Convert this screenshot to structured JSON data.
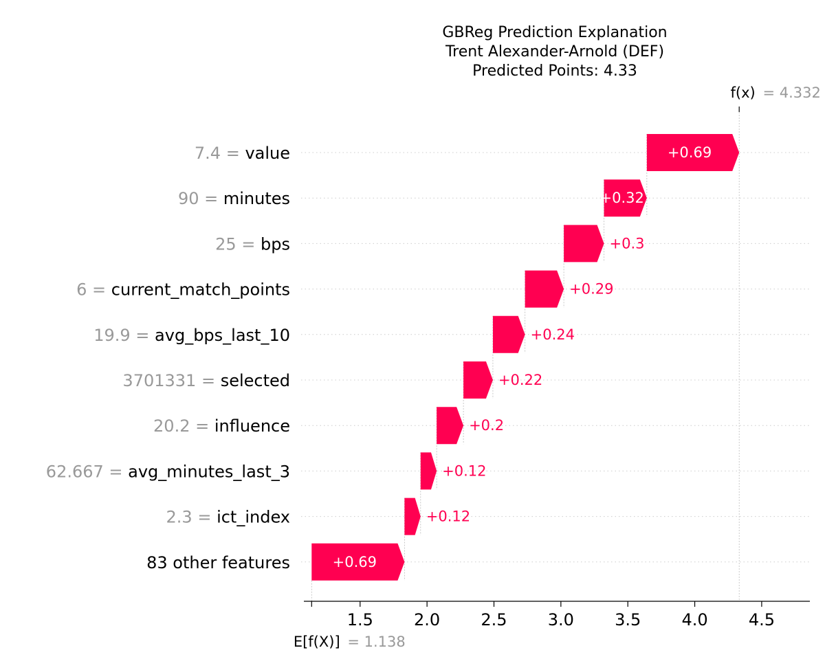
{
  "chart_data": {
    "type": "waterfall",
    "title_lines": [
      "GBReg Prediction Explanation",
      "Trent Alexander-Arnold (DEF)",
      "Predicted Points: 4.33"
    ],
    "base_value": 1.138,
    "base_value_label": "1.138",
    "base_label": "E[f(X)]",
    "output_value": 4.332,
    "output_value_label": "4.332",
    "output_label": "f(x)",
    "x_ticks": [
      1.5,
      2.0,
      2.5,
      3.0,
      3.5,
      4.0,
      4.5
    ],
    "x_tick_labels": [
      "1.5",
      "2.0",
      "2.5",
      "3.0",
      "3.5",
      "4.0",
      "4.5"
    ],
    "xlim": [
      1.08,
      4.86
    ],
    "positive_color": "#ff0051",
    "feature_value_color": "#999999",
    "features": [
      {
        "value_text": "7.4",
        "name": "value",
        "contribution": 0.69,
        "label": "+0.69"
      },
      {
        "value_text": "90",
        "name": "minutes",
        "contribution": 0.32,
        "label": "+0.32"
      },
      {
        "value_text": "25",
        "name": "bps",
        "contribution": 0.3,
        "label": "+0.3"
      },
      {
        "value_text": "6",
        "name": "current_match_points",
        "contribution": 0.29,
        "label": "+0.29"
      },
      {
        "value_text": "19.9",
        "name": "avg_bps_last_10",
        "contribution": 0.24,
        "label": "+0.24"
      },
      {
        "value_text": "3701331",
        "name": "selected",
        "contribution": 0.22,
        "label": "+0.22"
      },
      {
        "value_text": "20.2",
        "name": "influence",
        "contribution": 0.2,
        "label": "+0.2"
      },
      {
        "value_text": "62.667",
        "name": "avg_minutes_last_3",
        "contribution": 0.12,
        "label": "+0.12"
      },
      {
        "value_text": "2.3",
        "name": "ict_index",
        "contribution": 0.12,
        "label": "+0.12"
      },
      {
        "value_text": "",
        "name": "83 other features",
        "contribution": 0.69,
        "label": "+0.69"
      }
    ]
  }
}
